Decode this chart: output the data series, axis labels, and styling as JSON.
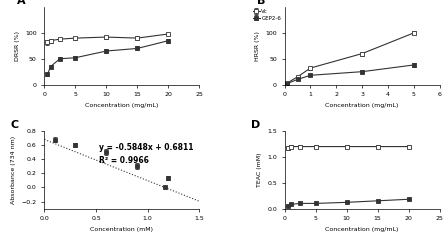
{
  "A": {
    "title": "A",
    "xlabel": "Concentration (mg/mL)",
    "ylabel": "DRSR (%)",
    "xlim": [
      0,
      25
    ],
    "ylim": [
      0,
      150
    ],
    "yticks": [
      0,
      50,
      100
    ],
    "vc_x": [
      0.5,
      1,
      2.5,
      5,
      10,
      15,
      20
    ],
    "vc_y": [
      82,
      85,
      88,
      90,
      92,
      90,
      98
    ],
    "vc_err": [
      5,
      4,
      3,
      3,
      3,
      4,
      2
    ],
    "gep_x": [
      0.5,
      1,
      2.5,
      5,
      10,
      15,
      20
    ],
    "gep_y": [
      20,
      35,
      50,
      52,
      65,
      70,
      85
    ],
    "gep_err": [
      3,
      3,
      3,
      3,
      4,
      4,
      4
    ],
    "vc_label": "Vc",
    "gep_label": "GEP2-6",
    "xticks": [
      0,
      5,
      10,
      15,
      20,
      25
    ]
  },
  "B": {
    "title": "B",
    "xlabel": "Concentration (mg/mL)",
    "ylabel": "HRSR (%)",
    "xlim": [
      0,
      6
    ],
    "ylim": [
      0,
      150
    ],
    "yticks": [
      0,
      50,
      100
    ],
    "vc_x": [
      0.1,
      0.5,
      1,
      3,
      5
    ],
    "vc_y": [
      3,
      15,
      32,
      60,
      100
    ],
    "vc_err": [
      1,
      2,
      3,
      4,
      3
    ],
    "gep_x": [
      0.1,
      0.5,
      1,
      3,
      5
    ],
    "gep_y": [
      2,
      10,
      18,
      25,
      38
    ],
    "gep_err": [
      1,
      2,
      2,
      3,
      3
    ],
    "vc_label": "Vc",
    "gep_label": "GEP2-6",
    "xticks": [
      0,
      1,
      2,
      3,
      4,
      5,
      6
    ]
  },
  "C": {
    "title": "C",
    "xlabel": "Concentration (mM)",
    "ylabel": "Absorbance (734 nm)",
    "xlim": [
      0,
      1.5
    ],
    "ylim": [
      -0.3,
      0.8
    ],
    "yticks": [
      -0.2,
      0,
      0.2,
      0.4,
      0.6,
      0.8
    ],
    "x": [
      0.1,
      0.3,
      0.6,
      0.9,
      1.2
    ],
    "y": [
      0.68,
      0.6,
      0.5,
      0.3,
      0.13
    ],
    "err": [
      0.03,
      0.03,
      0.04,
      0.04,
      0.03
    ],
    "last_x": [
      1.2
    ],
    "last_y": [
      0.0
    ],
    "eq_text": "y = -0.5848x + 0.6811",
    "r2_text": "R² = 0.9966",
    "slope": -0.5848,
    "intercept": 0.6811,
    "xticks": [
      0,
      0.5,
      1.0,
      1.5
    ]
  },
  "D": {
    "title": "D",
    "xlabel": "Concentration (mg/mL)",
    "ylabel": "TEAC (mM)",
    "xlim": [
      0,
      25
    ],
    "ylim": [
      0,
      1.5
    ],
    "yticks": [
      0,
      0.5,
      1.0,
      1.5
    ],
    "vc_x": [
      0.5,
      1,
      2.5,
      5,
      10,
      15,
      20
    ],
    "vc_y": [
      1.18,
      1.2,
      1.2,
      1.2,
      1.2,
      1.2,
      1.2
    ],
    "vc_err": [
      0.04,
      0.03,
      0.03,
      0.03,
      0.03,
      0.03,
      0.03
    ],
    "gep_x": [
      0.5,
      1,
      2.5,
      5,
      10,
      15,
      20
    ],
    "gep_y": [
      0.05,
      0.08,
      0.1,
      0.1,
      0.12,
      0.15,
      0.18
    ],
    "gep_err": [
      0.01,
      0.01,
      0.01,
      0.01,
      0.01,
      0.02,
      0.02
    ],
    "vc_label": "Vc",
    "gep_label": "GEP2-6",
    "xticks": [
      0,
      5,
      10,
      15,
      20,
      25
    ]
  }
}
